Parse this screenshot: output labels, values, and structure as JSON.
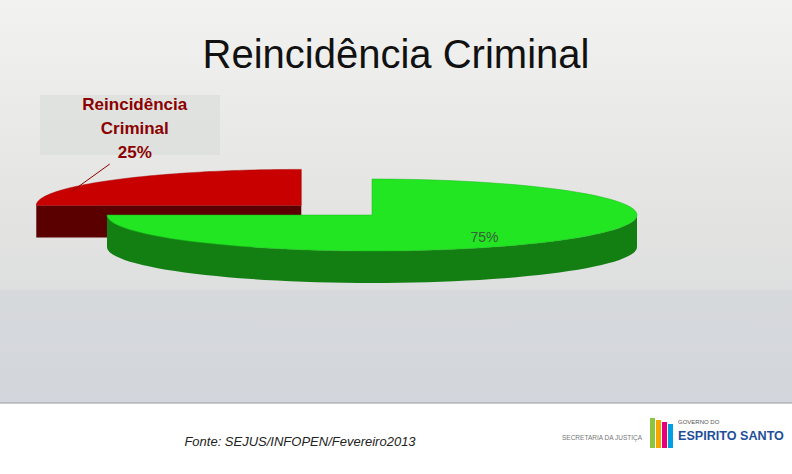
{
  "chart_data": {
    "type": "pie",
    "title": "Reincidência Criminal",
    "categories": [
      null,
      "Reincidência Criminal"
    ],
    "values": [
      75,
      25
    ],
    "value_labels": [
      "75%",
      "25%"
    ],
    "colors": [
      "#22e622",
      "#c80000"
    ],
    "data_labels": true
  },
  "footer": {
    "source": "Fonte: SEJUS/INFOPEN/Fevereiro2013",
    "logo_texts": [
      "SECRETARIA DA JUSTIÇA",
      "GOVERNO DO",
      "ESPIRITO SANTO"
    ]
  }
}
